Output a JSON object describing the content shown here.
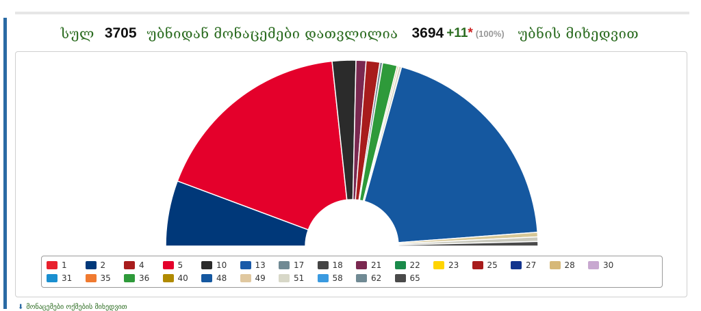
{
  "header": {
    "w_total": "სულ",
    "total": "3705",
    "w_from_precincts": "უბნიდან მონაცემები დათვლილია",
    "counted": "3694",
    "extra": "+11",
    "star": "*",
    "percent": "(100%)",
    "w_by_precinct": "უბნის მიხედვით"
  },
  "footer": {
    "link_label": "მონაცემები ოქმების მიხედვით"
  },
  "chart_data": {
    "type": "pie",
    "start_angle_deg": 180,
    "end_angle_deg": 360,
    "inner_radius_ratio": 0.25,
    "slices": [
      {
        "name": "2",
        "value": 7.2,
        "color": "#003879"
      },
      {
        "name": "5",
        "value": 22.3,
        "color": "#e4002b"
      },
      {
        "name": "10",
        "value": 2.6,
        "color": "#2b2b2b"
      },
      {
        "name": "21",
        "value": 1.1,
        "color": "#7a2850"
      },
      {
        "name": "25",
        "value": 1.5,
        "color": "#a81c1c"
      },
      {
        "name": "17",
        "value": 0.3,
        "color": "#708a94"
      },
      {
        "name": "36",
        "value": 1.6,
        "color": "#2e9a3a"
      },
      {
        "name": "49",
        "value": 0.2,
        "color": "#e0c8a0"
      },
      {
        "name": "51",
        "value": 0.3,
        "color": "#d8d8c8"
      },
      {
        "name": "48",
        "value": 24.7,
        "color": "#1558a0"
      },
      {
        "name": "28",
        "value": 0.5,
        "color": "#d6c796"
      },
      {
        "name": "30",
        "value": 0.5,
        "color": "#c9c9bd"
      },
      {
        "name": "65",
        "value": 0.5,
        "color": "#4a4a4a"
      }
    ],
    "legend": [
      {
        "name": "1",
        "color": "#e8212d"
      },
      {
        "name": "2",
        "color": "#003879"
      },
      {
        "name": "4",
        "color": "#a81c1c"
      },
      {
        "name": "5",
        "color": "#e4002b"
      },
      {
        "name": "10",
        "color": "#2b2b2b"
      },
      {
        "name": "13",
        "color": "#1a5aa8"
      },
      {
        "name": "17",
        "color": "#708a94"
      },
      {
        "name": "18",
        "color": "#444444"
      },
      {
        "name": "21",
        "color": "#7a2850"
      },
      {
        "name": "22",
        "color": "#1a8a4a"
      },
      {
        "name": "23",
        "color": "#ffd400"
      },
      {
        "name": "25",
        "color": "#a81c1c"
      },
      {
        "name": "27",
        "color": "#13358e"
      },
      {
        "name": "28",
        "color": "#d6b878"
      },
      {
        "name": "30",
        "color": "#c8a8d0"
      },
      {
        "name": "31",
        "color": "#1a8fd0"
      },
      {
        "name": "35",
        "color": "#f07a30"
      },
      {
        "name": "36",
        "color": "#2e9a3a"
      },
      {
        "name": "40",
        "color": "#b08a00"
      },
      {
        "name": "48",
        "color": "#1558a0"
      },
      {
        "name": "49",
        "color": "#e0c8a0"
      },
      {
        "name": "51",
        "color": "#d8d8c8"
      },
      {
        "name": "58",
        "color": "#3a9ae0"
      },
      {
        "name": "62",
        "color": "#708a94"
      },
      {
        "name": "65",
        "color": "#4a4a4a"
      }
    ]
  }
}
